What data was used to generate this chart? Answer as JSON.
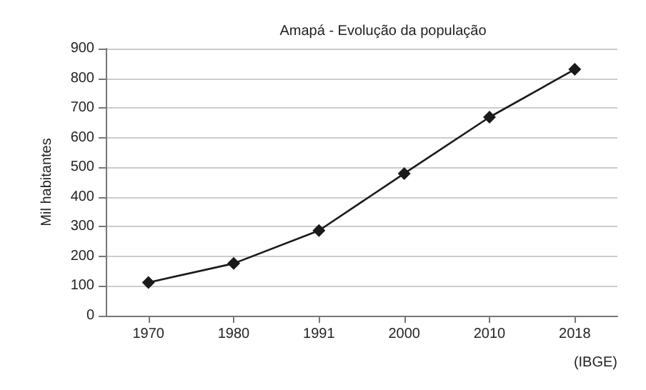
{
  "chart_data": {
    "type": "line",
    "title": "Amapá - Evolução da população",
    "ylabel": "Mil habitantes",
    "categories": [
      "1970",
      "1980",
      "1991",
      "2000",
      "2010",
      "2018"
    ],
    "series": [
      {
        "color": "#1a1a1a",
        "values": [
          112,
          176,
          287,
          479,
          669,
          830
        ]
      }
    ],
    "ylim": [
      0,
      900
    ],
    "yticks": [
      0,
      100,
      200,
      300,
      400,
      500,
      600,
      700,
      800,
      900
    ],
    "grid": "y",
    "marker": "diamond",
    "line_style": "solid",
    "annotations": [
      "(IBGE)"
    ]
  }
}
